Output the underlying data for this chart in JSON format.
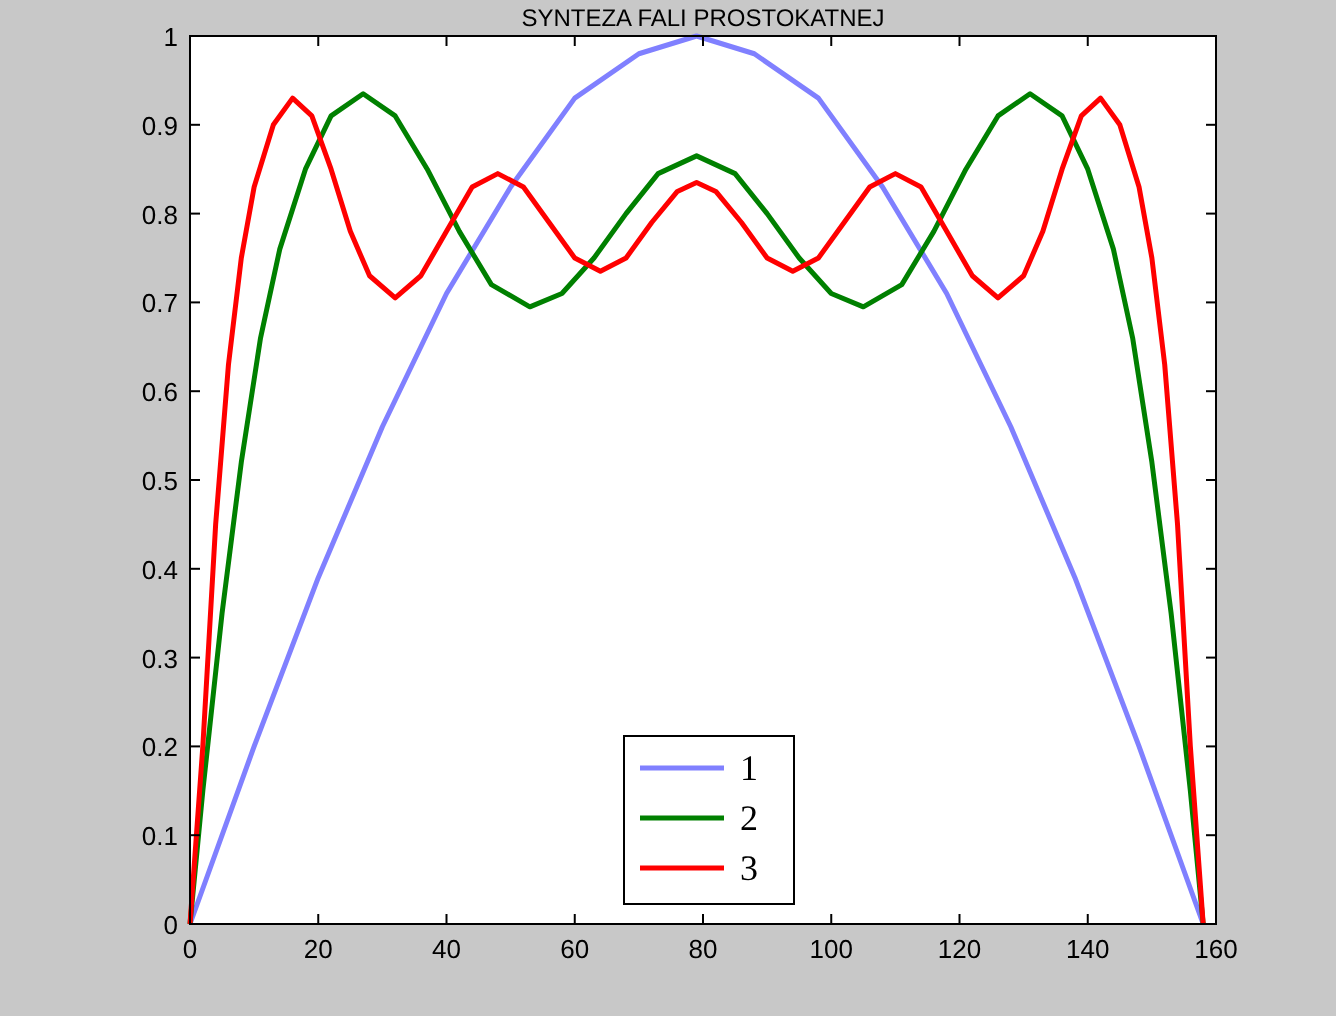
{
  "chart_data": {
    "type": "line",
    "title": "SYNTEZA  FALI  PROSTOKATNEJ",
    "xlim": [
      0,
      160
    ],
    "xticks": [
      0,
      20,
      40,
      60,
      80,
      100,
      120,
      140,
      160
    ],
    "ylim": [
      0,
      1
    ],
    "yticks": [
      0,
      0.1,
      0.2,
      0.3,
      0.4,
      0.5,
      0.6,
      0.7,
      0.8,
      0.9,
      1
    ],
    "grid": false,
    "legend": "bottom",
    "marker": "none",
    "line_style": "solid",
    "series": [
      {
        "name": "1",
        "color": "#8080ff",
        "x": [
          0,
          10,
          20,
          30,
          40,
          50,
          60,
          70,
          79,
          88,
          98,
          108,
          118,
          128,
          138,
          148,
          158
        ],
        "values": [
          0,
          0.2,
          0.39,
          0.56,
          0.71,
          0.83,
          0.93,
          0.98,
          1,
          0.98,
          0.93,
          0.83,
          0.71,
          0.56,
          0.39,
          0.2,
          0
        ]
      },
      {
        "name": "2",
        "color": "#008000",
        "x": [
          0,
          2,
          5,
          8,
          11,
          14,
          18,
          22,
          27,
          32,
          37,
          42,
          47,
          53,
          58,
          63,
          68,
          73,
          79,
          85,
          90,
          95,
          100,
          105,
          111,
          116,
          121,
          126,
          131,
          136,
          140,
          144,
          147,
          150,
          153,
          156,
          158
        ],
        "values": [
          0,
          0.15,
          0.35,
          0.52,
          0.66,
          0.76,
          0.85,
          0.91,
          0.935,
          0.91,
          0.85,
          0.78,
          0.72,
          0.695,
          0.71,
          0.75,
          0.8,
          0.845,
          0.865,
          0.845,
          0.8,
          0.75,
          0.71,
          0.695,
          0.72,
          0.78,
          0.85,
          0.91,
          0.935,
          0.91,
          0.85,
          0.76,
          0.66,
          0.52,
          0.35,
          0.15,
          0
        ]
      },
      {
        "name": "3",
        "color": "#ff0000",
        "x": [
          0,
          2,
          4,
          6,
          8,
          10,
          13,
          16,
          19,
          22,
          25,
          28,
          32,
          36,
          40,
          44,
          48,
          52,
          56,
          60,
          64,
          68,
          72,
          76,
          79,
          82,
          86,
          90,
          94,
          98,
          102,
          106,
          110,
          114,
          118,
          122,
          126,
          130,
          133,
          136,
          139,
          142,
          145,
          148,
          150,
          152,
          154,
          156,
          158
        ],
        "values": [
          0,
          0.2,
          0.45,
          0.63,
          0.75,
          0.83,
          0.9,
          0.93,
          0.91,
          0.85,
          0.78,
          0.73,
          0.705,
          0.73,
          0.78,
          0.83,
          0.845,
          0.83,
          0.79,
          0.75,
          0.735,
          0.75,
          0.79,
          0.825,
          0.835,
          0.825,
          0.79,
          0.75,
          0.735,
          0.75,
          0.79,
          0.83,
          0.845,
          0.83,
          0.78,
          0.73,
          0.705,
          0.73,
          0.78,
          0.85,
          0.91,
          0.93,
          0.9,
          0.83,
          0.75,
          0.63,
          0.45,
          0.2,
          0
        ]
      }
    ]
  }
}
